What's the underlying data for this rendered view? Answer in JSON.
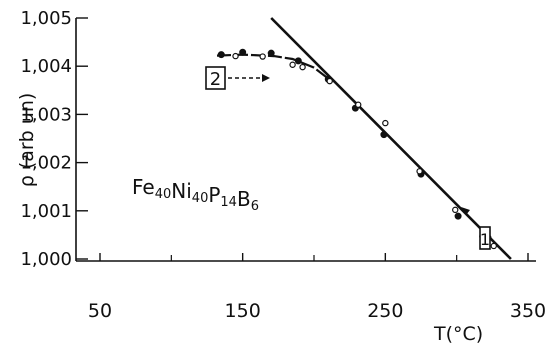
{
  "chart_data": {
    "type": "scatter",
    "title": "",
    "xlabel": "T(°C)",
    "ylabel": "ρ (arb un)",
    "xlim": [
      50,
      350
    ],
    "ylim": [
      1.0,
      1.005
    ],
    "x_ticks": [
      {
        "value": 50,
        "label": "50"
      },
      {
        "value": 150,
        "label": "150"
      },
      {
        "value": 250,
        "label": "250"
      },
      {
        "value": 350,
        "label": "350"
      }
    ],
    "y_ticks": [
      {
        "value": 1.0,
        "label": "1,000"
      },
      {
        "value": 1.001,
        "label": "1,001"
      },
      {
        "value": 1.002,
        "label": "1,002"
      },
      {
        "value": 1.003,
        "label": "1,003"
      },
      {
        "value": 1.004,
        "label": "1,004"
      },
      {
        "value": 1.005,
        "label": "1,005"
      }
    ],
    "annotation": {
      "formula_parts": [
        {
          "text": "Fe",
          "sub": "40"
        },
        {
          "text": "Ni",
          "sub": "40"
        },
        {
          "text": "P",
          "sub": "14"
        },
        {
          "text": "B",
          "sub": "6"
        }
      ]
    },
    "series": [
      {
        "name": "1",
        "style": "line",
        "points": [
          [
            170,
            1.005
          ],
          [
            338,
            1.0
          ]
        ]
      },
      {
        "name": "2",
        "style": "line",
        "points": [
          [
            132,
            1.00422
          ],
          [
            150,
            1.00424
          ],
          [
            172,
            1.00421
          ],
          [
            185,
            1.00415
          ],
          [
            200,
            1.00397
          ],
          [
            212,
            1.0037
          ]
        ]
      },
      {
        "name": "filled",
        "style": "points-filled",
        "points": [
          [
            135,
            1.00424
          ],
          [
            150,
            1.00429
          ],
          [
            170,
            1.00427
          ],
          [
            189,
            1.00411
          ],
          [
            210,
            1.00373
          ],
          [
            229,
            1.00313
          ],
          [
            249,
            1.00258
          ],
          [
            275,
            1.00176
          ],
          [
            301,
            1.00089
          ],
          [
            322,
            1.00044
          ]
        ]
      },
      {
        "name": "open",
        "style": "points-open",
        "points": [
          [
            145,
            1.00421
          ],
          [
            164,
            1.0042
          ],
          [
            185,
            1.00403
          ],
          [
            192,
            1.00398
          ],
          [
            211,
            1.00369
          ],
          [
            231,
            1.0032
          ],
          [
            250,
            1.00282
          ],
          [
            274,
            1.00182
          ],
          [
            299,
            1.00102
          ],
          [
            318,
            1.00047
          ],
          [
            326,
            1.00027
          ]
        ]
      }
    ],
    "labels": [
      {
        "text": "2",
        "boxed": true
      },
      {
        "text": "1",
        "boxed": true
      }
    ]
  }
}
